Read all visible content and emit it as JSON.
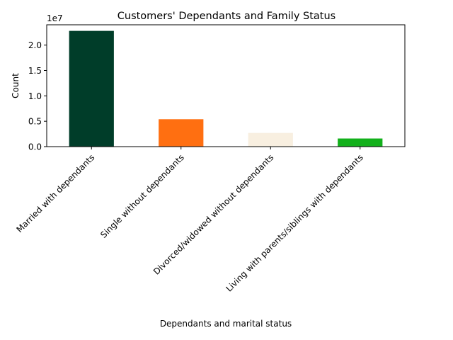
{
  "chart_data": {
    "type": "bar",
    "title": "Customers' Dependants and Family Status",
    "xlabel": "Dependants and marital status",
    "ylabel": "Count",
    "offset_label": "1e7",
    "categories": [
      "Married with dependants",
      "Single without dependants",
      "Divorced/widowed without dependants",
      "Living with parents/siblings with dependants"
    ],
    "values": [
      22800000,
      5400000,
      2700000,
      1600000
    ],
    "colors": [
      "#003d29",
      "#ff6f11",
      "#f8efe0",
      "#12b01b"
    ],
    "ylim": [
      0,
      24000000
    ],
    "yticks": [
      0,
      5000000,
      10000000,
      15000000,
      20000000
    ],
    "ytick_labels": [
      "0.0",
      "0.5",
      "1.0",
      "1.5",
      "2.0"
    ],
    "grid": false,
    "legend": "none"
  }
}
